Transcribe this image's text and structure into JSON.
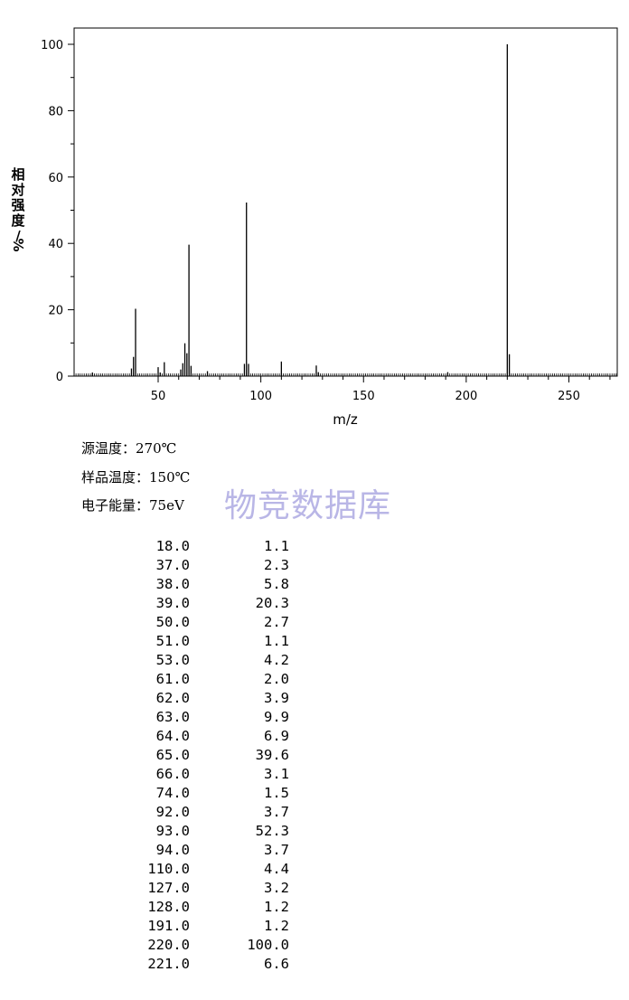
{
  "chart_data": {
    "type": "bar",
    "xlabel": "m/z",
    "ylabel": "相对强度/%",
    "xlim": [
      8,
      273
    ],
    "ylim": [
      0,
      105
    ],
    "x_ticks": [
      50,
      100,
      150,
      200,
      250
    ],
    "y_ticks": [
      0,
      20,
      40,
      60,
      80,
      100
    ],
    "grid": false,
    "peaks": [
      {
        "mz": 18.0,
        "abundance": 1.1
      },
      {
        "mz": 37.0,
        "abundance": 2.3
      },
      {
        "mz": 38.0,
        "abundance": 5.8
      },
      {
        "mz": 39.0,
        "abundance": 20.3
      },
      {
        "mz": 50.0,
        "abundance": 2.7
      },
      {
        "mz": 51.0,
        "abundance": 1.1
      },
      {
        "mz": 53.0,
        "abundance": 4.2
      },
      {
        "mz": 61.0,
        "abundance": 2.0
      },
      {
        "mz": 62.0,
        "abundance": 3.9
      },
      {
        "mz": 63.0,
        "abundance": 9.9
      },
      {
        "mz": 64.0,
        "abundance": 6.9
      },
      {
        "mz": 65.0,
        "abundance": 39.6
      },
      {
        "mz": 66.0,
        "abundance": 3.1
      },
      {
        "mz": 74.0,
        "abundance": 1.5
      },
      {
        "mz": 92.0,
        "abundance": 3.7
      },
      {
        "mz": 93.0,
        "abundance": 52.3
      },
      {
        "mz": 94.0,
        "abundance": 3.7
      },
      {
        "mz": 110.0,
        "abundance": 4.4
      },
      {
        "mz": 127.0,
        "abundance": 3.2
      },
      {
        "mz": 128.0,
        "abundance": 1.2
      },
      {
        "mz": 191.0,
        "abundance": 1.2
      },
      {
        "mz": 220.0,
        "abundance": 100.0
      },
      {
        "mz": 221.0,
        "abundance": 6.6
      }
    ]
  },
  "conditions": {
    "source_temp": "源温度：270℃",
    "sample_temp": "样品温度：150℃",
    "electron_energy": "电子能量：75eV"
  },
  "watermark": "物竞数据库",
  "table": {
    "rows": [
      [
        "18.0",
        "1.1"
      ],
      [
        "37.0",
        "2.3"
      ],
      [
        "38.0",
        "5.8"
      ],
      [
        "39.0",
        "20.3"
      ],
      [
        "50.0",
        "2.7"
      ],
      [
        "51.0",
        "1.1"
      ],
      [
        "53.0",
        "4.2"
      ],
      [
        "61.0",
        "2.0"
      ],
      [
        "62.0",
        "3.9"
      ],
      [
        "63.0",
        "9.9"
      ],
      [
        "64.0",
        "6.9"
      ],
      [
        "65.0",
        "39.6"
      ],
      [
        "66.0",
        "3.1"
      ],
      [
        "74.0",
        "1.5"
      ],
      [
        "92.0",
        "3.7"
      ],
      [
        "93.0",
        "52.3"
      ],
      [
        "94.0",
        "3.7"
      ],
      [
        "110.0",
        "4.4"
      ],
      [
        "127.0",
        "3.2"
      ],
      [
        "128.0",
        "1.2"
      ],
      [
        "191.0",
        "1.2"
      ],
      [
        "220.0",
        "100.0"
      ],
      [
        "221.0",
        "6.6"
      ]
    ]
  }
}
